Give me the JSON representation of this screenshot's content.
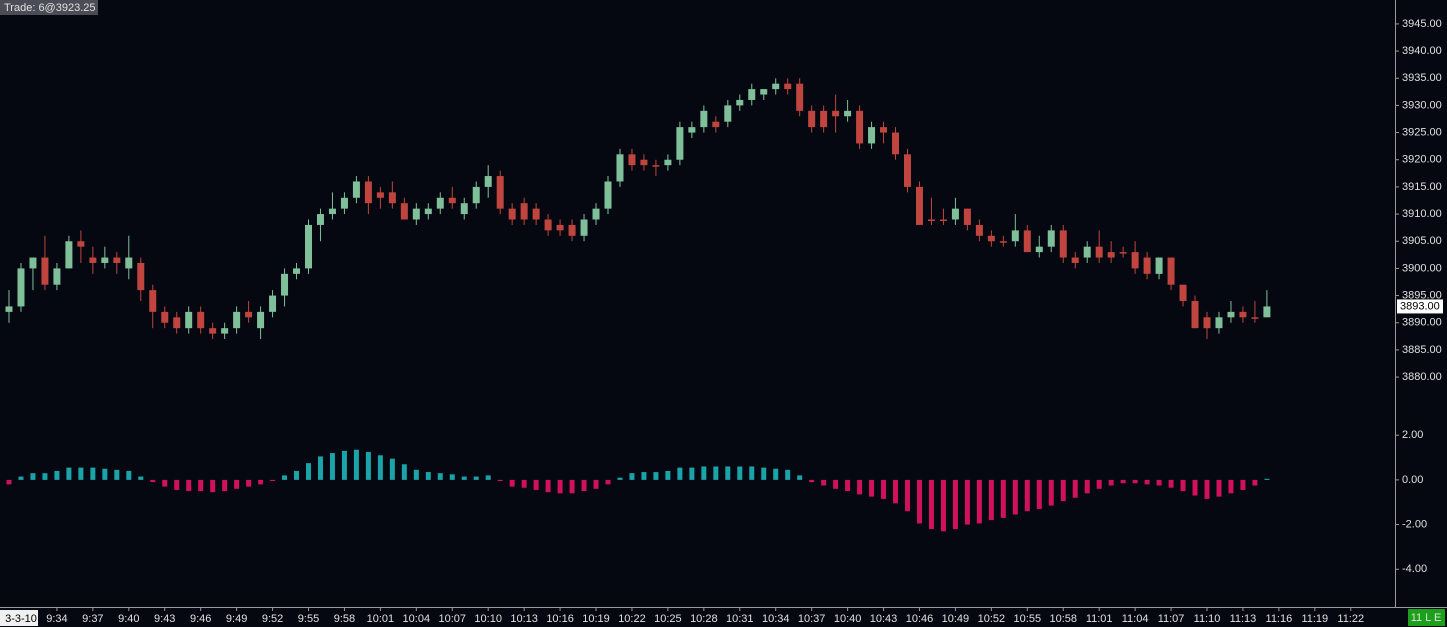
{
  "status_text": "Trade: 6@3923.25",
  "badge": "11 L E",
  "chart_data": [
    {
      "type": "candlestick",
      "categories": [
        null,
        "3-3-10",
        null,
        null,
        "9:34",
        null,
        null,
        "9:37",
        null,
        null,
        "9:40",
        null,
        null,
        "9:43",
        null,
        null,
        "9:46",
        null,
        null,
        "9:49",
        null,
        null,
        "9:52",
        null,
        null,
        "9:55",
        null,
        null,
        "9:58",
        null,
        null,
        "10:01",
        null,
        null,
        "10:04",
        null,
        null,
        "10:07",
        null,
        null,
        "10:10",
        null,
        null,
        "10:13",
        null,
        null,
        "10:16",
        null,
        null,
        "10:19",
        null,
        null,
        "10:22",
        null,
        null,
        "10:25",
        null,
        null,
        "10:28",
        null,
        null,
        "10:31",
        null,
        null,
        "10:34",
        null,
        null,
        "10:37",
        null,
        null,
        "10:40",
        null,
        null,
        "10:43",
        null,
        null,
        "10:46",
        null,
        null,
        "10:49",
        null,
        null,
        "10:52",
        null,
        null,
        "10:55",
        null,
        null,
        "10:58",
        null,
        null,
        "11:01",
        null,
        null,
        "11:04",
        null,
        null,
        "11:07",
        null,
        null,
        "11:10",
        null,
        null,
        "11:13",
        null,
        null,
        "11:16",
        null,
        null,
        "11:19",
        null,
        null,
        "11:22",
        null,
        null,
        null
      ],
      "open": [
        3892,
        3893,
        3900,
        3902,
        3897,
        3900,
        3905,
        3902,
        3901,
        3902,
        3900,
        3901,
        3896,
        3892,
        3891,
        3889,
        3892,
        3889,
        3888,
        3889,
        3892,
        3889,
        3892,
        3895,
        3899,
        3900,
        3908,
        3910,
        3911,
        3913,
        3916,
        3914,
        3914,
        3912,
        3909,
        3910,
        3911,
        3913,
        3910,
        3912,
        3915,
        3917,
        3911,
        3912,
        3911,
        3909,
        3908,
        3908,
        3906,
        3909,
        3911,
        3916,
        3921,
        3920,
        3919,
        3919,
        3920,
        3925,
        3926,
        3927,
        3927,
        3930,
        3931,
        3932,
        3933,
        3934,
        3934,
        3929,
        3929,
        3929,
        3928,
        3929,
        3923,
        3926,
        3925,
        3921,
        3915,
        3909,
        3909,
        3909,
        3911,
        3908,
        3906,
        3905,
        3905,
        3907,
        3903,
        3904,
        3907,
        3902,
        3902,
        3904,
        3903,
        3903,
        3903,
        3902,
        3899,
        3902,
        3897,
        3894,
        3891,
        3889,
        3891,
        3892,
        3891,
        3891,
        null,
        null,
        null,
        null,
        null,
        null,
        null,
        null,
        null,
        null
      ],
      "high": [
        3896,
        3901,
        3902,
        3906,
        3901,
        3906,
        3907,
        3904,
        3904,
        3903,
        3906,
        3902,
        3897,
        3893,
        3892,
        3893,
        3893,
        3890,
        3890,
        3893,
        3894,
        3893,
        3896,
        3900,
        3901,
        3909,
        3911,
        3914,
        3914,
        3917,
        3917,
        3915,
        3916,
        3913,
        3912,
        3912,
        3914,
        3915,
        3913,
        3916,
        3919,
        3918,
        3912,
        3913,
        3912,
        3910,
        3909,
        3909,
        3910,
        3912,
        3917,
        3922,
        3922,
        3921,
        3920,
        3921,
        3927,
        3927,
        3930,
        3928,
        3931,
        3932,
        3934,
        3933,
        3935,
        3935,
        3935,
        3930,
        3930,
        3932,
        3931,
        3930,
        3927,
        3927,
        3926,
        3922,
        3916,
        3913,
        3911,
        3913,
        3911,
        3909,
        3907,
        3906,
        3910,
        3908,
        3906,
        3908,
        3908,
        3903,
        3905,
        3907,
        3905,
        3904,
        3905,
        3903,
        3902,
        3902,
        3897,
        3895,
        3892,
        3892,
        3894,
        3893,
        3894,
        3896,
        null,
        null,
        null,
        null,
        null,
        null,
        null,
        null,
        null,
        null
      ],
      "low": [
        3890,
        3892,
        3896,
        3896,
        3896,
        3900,
        3901,
        3899,
        3900,
        3899,
        3898,
        3894,
        3889,
        3889,
        3888,
        3888,
        3888,
        3887,
        3887,
        3888,
        3890,
        3887,
        3891,
        3893,
        3898,
        3899,
        3905,
        3909,
        3910,
        3912,
        3910,
        3911,
        3911,
        3909,
        3908,
        3909,
        3910,
        3911,
        3909,
        3911,
        3913,
        3910,
        3908,
        3908,
        3908,
        3906,
        3906,
        3905,
        3905,
        3908,
        3910,
        3915,
        3918,
        3918,
        3917,
        3918,
        3919,
        3924,
        3925,
        3925,
        3926,
        3929,
        3930,
        3931,
        3932,
        3932,
        3928,
        3925,
        3925,
        3925,
        3927,
        3922,
        3922,
        3923,
        3920,
        3914,
        3908,
        3908,
        3908,
        3908,
        3907,
        3905,
        3904,
        3904,
        3904,
        3903,
        3902,
        3903,
        3901,
        3900,
        3901,
        3901,
        3901,
        3902,
        3899,
        3898,
        3898,
        3896,
        3893,
        3889,
        3887,
        3888,
        3890,
        3890,
        3890,
        3891,
        null,
        null,
        null,
        null,
        null,
        null,
        null,
        null,
        null,
        null
      ],
      "close": [
        3893,
        3900,
        3902,
        3897,
        3900,
        3905,
        3904,
        3901,
        3902,
        3901,
        3902,
        3896,
        3892,
        3890,
        3889,
        3892,
        3889,
        3888,
        3889,
        3892,
        3891,
        3892,
        3895,
        3899,
        3900,
        3908,
        3910,
        3911,
        3913,
        3916,
        3912,
        3913,
        3912,
        3909,
        3911,
        3911,
        3913,
        3912,
        3912,
        3915,
        3917,
        3911,
        3909,
        3909,
        3909,
        3907,
        3907,
        3906,
        3909,
        3911,
        3916,
        3921,
        3919,
        3919,
        3919,
        3920,
        3926,
        3926,
        3929,
        3926,
        3930,
        3931,
        3933,
        3933,
        3934,
        3933,
        3929,
        3926,
        3926,
        3928,
        3929,
        3923,
        3926,
        3925,
        3921,
        3915,
        3908,
        3909,
        3909,
        3911,
        3908,
        3906,
        3905,
        3905,
        3907,
        3903,
        3904,
        3907,
        3902,
        3901,
        3904,
        3902,
        3902,
        3903,
        3900,
        3899,
        3902,
        3897,
        3894,
        3889,
        3889,
        3891,
        3892,
        3891,
        3891,
        3893,
        null,
        null,
        null,
        null,
        null,
        null,
        null,
        null,
        null,
        null
      ],
      "up_color": "#7fbf9a",
      "down_color": "#c0453e",
      "ylim": [
        3876.7,
        3949.4
      ],
      "yticks": [
        {
          "value": 3880,
          "label": "3880.00"
        },
        {
          "value": 3885,
          "label": "3885.00"
        },
        {
          "value": 3890,
          "label": "3890.00"
        },
        {
          "value": 3895,
          "label": "3895.00"
        },
        {
          "value": 3900,
          "label": "3900.00"
        },
        {
          "value": 3905,
          "label": "3905.00"
        },
        {
          "value": 3910,
          "label": "3910.00"
        },
        {
          "value": 3915,
          "label": "3915.00"
        },
        {
          "value": 3920,
          "label": "3920.00"
        },
        {
          "value": 3925,
          "label": "3925.00"
        },
        {
          "value": 3930,
          "label": "3930.00"
        },
        {
          "value": 3935,
          "label": "3935.00"
        },
        {
          "value": 3940,
          "label": "3940.00"
        },
        {
          "value": 3945,
          "label": "3945.00"
        }
      ],
      "price_marker": {
        "value": 3893,
        "label": "3893.00"
      }
    },
    {
      "type": "bar",
      "values": [
        -0.2,
        0.15,
        0.3,
        0.3,
        0.4,
        0.55,
        0.55,
        0.55,
        0.5,
        0.45,
        0.4,
        0.15,
        -0.1,
        -0.3,
        -0.45,
        -0.5,
        -0.5,
        -0.55,
        -0.5,
        -0.4,
        -0.3,
        -0.2,
        -0.05,
        0.2,
        0.4,
        0.75,
        1.05,
        1.2,
        1.3,
        1.35,
        1.25,
        1.1,
        0.95,
        0.7,
        0.45,
        0.35,
        0.3,
        0.25,
        0.15,
        0.15,
        0.2,
        -0.05,
        -0.3,
        -0.35,
        -0.45,
        -0.55,
        -0.6,
        -0.6,
        -0.5,
        -0.4,
        -0.2,
        0.1,
        0.3,
        0.35,
        0.35,
        0.4,
        0.55,
        0.55,
        0.6,
        0.6,
        0.6,
        0.6,
        0.6,
        0.55,
        0.5,
        0.45,
        0.2,
        -0.1,
        -0.25,
        -0.4,
        -0.5,
        -0.65,
        -0.75,
        -0.85,
        -1.05,
        -1.4,
        -1.95,
        -2.2,
        -2.3,
        -2.2,
        -2.0,
        -1.95,
        -1.8,
        -1.7,
        -1.55,
        -1.4,
        -1.3,
        -1.15,
        -0.95,
        -0.8,
        -0.6,
        -0.4,
        -0.25,
        -0.15,
        -0.15,
        -0.2,
        -0.25,
        -0.35,
        -0.5,
        -0.7,
        -0.85,
        -0.75,
        -0.6,
        -0.45,
        -0.25,
        0.05,
        null,
        null,
        null,
        null,
        null,
        null,
        null,
        null,
        null,
        null
      ],
      "positive_color": "#1aa3a8",
      "negative_color": "#d1105e",
      "ylim": [
        -5.6,
        3.8
      ],
      "yticks": [
        {
          "value": 2,
          "label": "2.00"
        },
        {
          "value": 0,
          "label": "0.00"
        },
        {
          "value": -2,
          "label": "-2.00"
        },
        {
          "value": -4,
          "label": "-4.00"
        }
      ]
    }
  ]
}
